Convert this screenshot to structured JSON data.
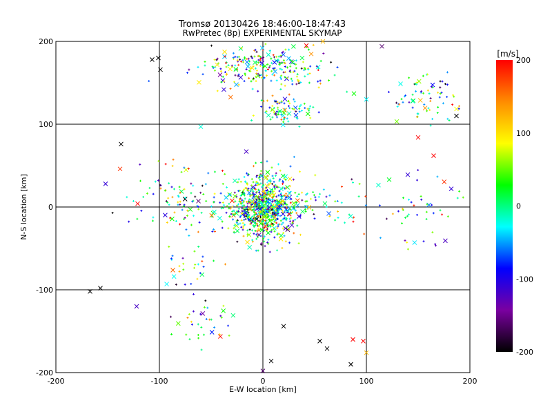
{
  "chart_data": {
    "type": "scatter",
    "title": "Tromsø 20130426 18:46:00-18:47:43",
    "subtitle": "RwPretec (8p) EXPERIMENTAL SKYMAP",
    "xlabel": "E-W location [km]",
    "ylabel": "N-S location [km]",
    "xlim": [
      -200,
      200
    ],
    "ylim": [
      -200,
      200
    ],
    "x_ticks": [
      -200,
      -100,
      0,
      100,
      200
    ],
    "y_ticks": [
      -200,
      -100,
      0,
      100,
      200
    ],
    "grid": true,
    "colorbar": {
      "label": "[m/s]",
      "range": [
        -200,
        200
      ],
      "ticks": [
        200,
        100,
        0,
        -100,
        -200
      ],
      "colors": [
        "#000000",
        "#7a00a0",
        "#0000ff",
        "#00ffff",
        "#00ff00",
        "#ffff00",
        "#ff8c00",
        "#ff0000"
      ]
    },
    "markers": [
      "x",
      "+"
    ],
    "clusters": [
      {
        "x": 0,
        "y": 0,
        "sx": 14,
        "sy": 20,
        "n": 700
      },
      {
        "x": 0,
        "y": 0,
        "sx": 55,
        "sy": 14,
        "n": 240
      },
      {
        "x": 0,
        "y": 170,
        "sx": 32,
        "sy": 14,
        "n": 260
      },
      {
        "x": 20,
        "y": 118,
        "sx": 12,
        "sy": 8,
        "n": 90
      },
      {
        "x": 160,
        "y": 130,
        "sx": 18,
        "sy": 14,
        "n": 70
      },
      {
        "x": -60,
        "y": -140,
        "sx": 15,
        "sy": 12,
        "n": 35
      },
      {
        "x": 155,
        "y": -10,
        "sx": 22,
        "sy": 22,
        "n": 45
      },
      {
        "x": -80,
        "y": 20,
        "sx": 20,
        "sy": 20,
        "n": 45
      },
      {
        "x": -70,
        "y": -70,
        "sx": 15,
        "sy": 15,
        "n": 30
      }
    ],
    "points": [
      {
        "x": -107,
        "y": 178,
        "v": -200
      },
      {
        "x": -101,
        "y": 180,
        "v": -200
      },
      {
        "x": -99,
        "y": 166,
        "v": -200
      },
      {
        "x": -137,
        "y": 76,
        "v": -200
      },
      {
        "x": -152,
        "y": 28,
        "v": -110
      },
      {
        "x": -138,
        "y": 46,
        "v": 180
      },
      {
        "x": -121,
        "y": 4,
        "v": 200
      },
      {
        "x": -122,
        "y": -120,
        "v": -120
      },
      {
        "x": -157,
        "y": -98,
        "v": -200
      },
      {
        "x": -167,
        "y": -102,
        "v": -200
      },
      {
        "x": 55,
        "y": -162,
        "v": -200
      },
      {
        "x": 87,
        "y": -160,
        "v": 200
      },
      {
        "x": 97,
        "y": -162,
        "v": 200
      },
      {
        "x": 85,
        "y": -190,
        "v": -200
      },
      {
        "x": 8,
        "y": -186,
        "v": -200
      },
      {
        "x": 0,
        "y": -198,
        "v": -160
      },
      {
        "x": 100,
        "y": -176,
        "v": 120
      },
      {
        "x": 62,
        "y": -171,
        "v": -200
      },
      {
        "x": 20,
        "y": -144,
        "v": -200
      },
      {
        "x": 122,
        "y": 33,
        "v": 20
      },
      {
        "x": 140,
        "y": 39,
        "v": -110
      },
      {
        "x": 182,
        "y": 22,
        "v": -110
      },
      {
        "x": 165,
        "y": 62,
        "v": 200
      },
      {
        "x": 150,
        "y": 84,
        "v": 200
      },
      {
        "x": 115,
        "y": 194,
        "v": -160
      },
      {
        "x": 187,
        "y": 110,
        "v": -200
      },
      {
        "x": 100,
        "y": 130,
        "v": -30
      },
      {
        "x": 88,
        "y": 137,
        "v": 30
      },
      {
        "x": -60,
        "y": 97,
        "v": -20
      },
      {
        "x": -16,
        "y": 67,
        "v": -120
      },
      {
        "x": 42,
        "y": 195,
        "v": 200
      },
      {
        "x": 58,
        "y": 200,
        "v": 120
      }
    ]
  }
}
